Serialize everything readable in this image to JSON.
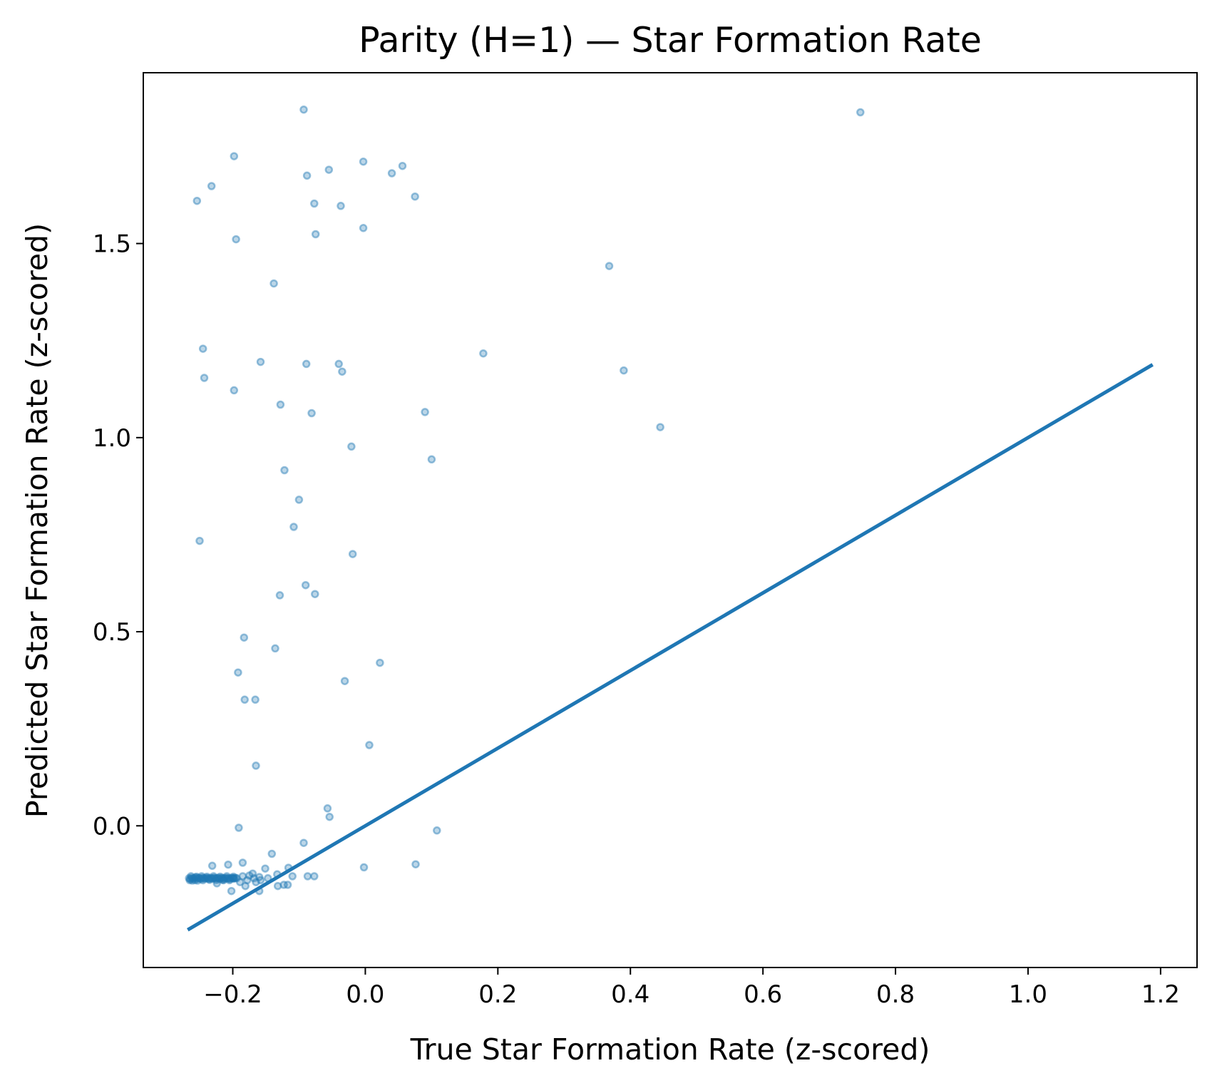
{
  "chart_data": {
    "type": "scatter",
    "title": "Parity (H=1) — Star Formation Rate",
    "xlabel": "True Star Formation Rate (z-scored)",
    "ylabel": "Predicted Star Formation Rate (z-scored)",
    "xlim": [
      -0.335,
      1.255
    ],
    "ylim": [
      -0.365,
      1.94
    ],
    "grid": false,
    "legend": "none",
    "colors": {
      "points": "#1f77b4",
      "line": "#1f77b4",
      "axes": "#000000"
    },
    "xticks": [
      -0.2,
      0.0,
      0.2,
      0.4,
      0.6,
      0.8,
      1.0,
      1.2
    ],
    "xtick_labels": [
      "−0.2",
      "0.0",
      "0.2",
      "0.4",
      "0.6",
      "0.8",
      "1.0",
      "1.2"
    ],
    "yticks": [
      0.0,
      0.5,
      1.0,
      1.5
    ],
    "ytick_labels": [
      "0.0",
      "0.5",
      "1.0",
      "1.5"
    ],
    "reference_line": {
      "x": [
        -0.268,
        1.188
      ],
      "y": [
        -0.268,
        1.188
      ]
    },
    "points": [
      [
        -0.093,
        1.845
      ],
      [
        0.747,
        1.838
      ],
      [
        -0.198,
        1.725
      ],
      [
        -0.003,
        1.711
      ],
      [
        0.056,
        1.7
      ],
      [
        -0.055,
        1.69
      ],
      [
        0.04,
        1.681
      ],
      [
        -0.088,
        1.675
      ],
      [
        -0.232,
        1.648
      ],
      [
        0.075,
        1.621
      ],
      [
        -0.254,
        1.61
      ],
      [
        -0.077,
        1.603
      ],
      [
        -0.037,
        1.597
      ],
      [
        -0.003,
        1.54
      ],
      [
        -0.075,
        1.524
      ],
      [
        -0.195,
        1.511
      ],
      [
        0.368,
        1.442
      ],
      [
        -0.138,
        1.397
      ],
      [
        -0.245,
        1.229
      ],
      [
        0.178,
        1.217
      ],
      [
        -0.158,
        1.195
      ],
      [
        -0.089,
        1.19
      ],
      [
        -0.04,
        1.19
      ],
      [
        0.39,
        1.173
      ],
      [
        -0.035,
        1.17
      ],
      [
        -0.243,
        1.154
      ],
      [
        -0.198,
        1.122
      ],
      [
        -0.128,
        1.085
      ],
      [
        -0.081,
        1.063
      ],
      [
        0.09,
        1.066
      ],
      [
        -0.021,
        0.977
      ],
      [
        0.1,
        0.944
      ],
      [
        0.445,
        1.027
      ],
      [
        -0.122,
        0.916
      ],
      [
        -0.1,
        0.84
      ],
      [
        -0.108,
        0.77
      ],
      [
        -0.25,
        0.734
      ],
      [
        -0.019,
        0.7
      ],
      [
        -0.09,
        0.62
      ],
      [
        -0.129,
        0.594
      ],
      [
        -0.076,
        0.597
      ],
      [
        -0.183,
        0.485
      ],
      [
        -0.136,
        0.457
      ],
      [
        0.022,
        0.42
      ],
      [
        -0.192,
        0.395
      ],
      [
        -0.031,
        0.373
      ],
      [
        -0.182,
        0.325
      ],
      [
        -0.166,
        0.325
      ],
      [
        0.006,
        0.208
      ],
      [
        -0.165,
        0.155
      ],
      [
        -0.057,
        0.045
      ],
      [
        -0.054,
        0.023
      ],
      [
        -0.191,
        -0.005
      ],
      [
        0.108,
        -0.012
      ],
      [
        -0.093,
        -0.044
      ],
      [
        -0.141,
        -0.072
      ],
      [
        0.076,
        -0.099
      ],
      [
        -0.002,
        -0.107
      ],
      [
        -0.185,
        -0.095
      ],
      [
        -0.207,
        -0.1
      ],
      [
        -0.231,
        -0.103
      ],
      [
        -0.116,
        -0.108
      ],
      [
        -0.151,
        -0.11
      ],
      [
        -0.17,
        -0.123
      ],
      [
        -0.133,
        -0.125
      ],
      [
        -0.087,
        -0.13
      ],
      [
        -0.077,
        -0.13
      ],
      [
        -0.11,
        -0.13
      ],
      [
        -0.158,
        -0.14
      ],
      [
        -0.189,
        -0.145
      ],
      [
        -0.123,
        -0.152
      ],
      [
        -0.117,
        -0.152
      ],
      [
        -0.132,
        -0.155
      ],
      [
        -0.181,
        -0.155
      ],
      [
        -0.16,
        -0.168
      ],
      [
        -0.202,
        -0.168
      ],
      [
        -0.224,
        -0.148
      ],
      [
        -0.199,
        -0.135
      ],
      [
        -0.168,
        -0.135
      ],
      [
        -0.214,
        -0.14
      ],
      [
        -0.266,
        -0.135
      ],
      [
        -0.264,
        -0.137
      ],
      [
        -0.262,
        -0.134
      ],
      [
        -0.26,
        -0.136
      ],
      [
        -0.258,
        -0.135
      ],
      [
        -0.256,
        -0.133
      ],
      [
        -0.254,
        -0.136
      ],
      [
        -0.252,
        -0.134
      ],
      [
        -0.25,
        -0.135
      ],
      [
        -0.248,
        -0.137
      ],
      [
        -0.246,
        -0.134
      ],
      [
        -0.244,
        -0.135
      ],
      [
        -0.242,
        -0.136
      ],
      [
        -0.24,
        -0.134
      ],
      [
        -0.238,
        -0.135
      ],
      [
        -0.236,
        -0.137
      ],
      [
        -0.234,
        -0.134
      ],
      [
        -0.232,
        -0.136
      ],
      [
        -0.23,
        -0.135
      ],
      [
        -0.228,
        -0.134
      ],
      [
        -0.226,
        -0.136
      ],
      [
        -0.224,
        -0.135
      ],
      [
        -0.222,
        -0.134
      ],
      [
        -0.22,
        -0.137
      ],
      [
        -0.218,
        -0.135
      ],
      [
        -0.216,
        -0.134
      ],
      [
        -0.214,
        -0.136
      ],
      [
        -0.212,
        -0.135
      ],
      [
        -0.21,
        -0.134
      ],
      [
        -0.208,
        -0.136
      ],
      [
        -0.206,
        -0.135
      ],
      [
        -0.204,
        -0.137
      ],
      [
        -0.202,
        -0.134
      ],
      [
        -0.2,
        -0.135
      ],
      [
        -0.198,
        -0.136
      ],
      [
        -0.196,
        -0.134
      ],
      [
        -0.194,
        -0.135
      ],
      [
        -0.265,
        -0.14
      ],
      [
        -0.261,
        -0.141
      ],
      [
        -0.257,
        -0.14
      ],
      [
        -0.253,
        -0.141
      ],
      [
        -0.245,
        -0.14
      ],
      [
        -0.235,
        -0.139
      ],
      [
        -0.225,
        -0.14
      ],
      [
        -0.215,
        -0.139
      ],
      [
        -0.205,
        -0.14
      ],
      [
        -0.263,
        -0.13
      ],
      [
        -0.255,
        -0.131
      ],
      [
        -0.247,
        -0.13
      ],
      [
        -0.239,
        -0.131
      ],
      [
        -0.229,
        -0.13
      ],
      [
        -0.219,
        -0.131
      ],
      [
        -0.209,
        -0.13
      ],
      [
        -0.199,
        -0.131
      ],
      [
        -0.185,
        -0.13
      ],
      [
        -0.175,
        -0.128
      ],
      [
        -0.16,
        -0.132
      ],
      [
        -0.147,
        -0.135
      ],
      [
        -0.178,
        -0.14
      ],
      [
        -0.165,
        -0.145
      ]
    ]
  }
}
